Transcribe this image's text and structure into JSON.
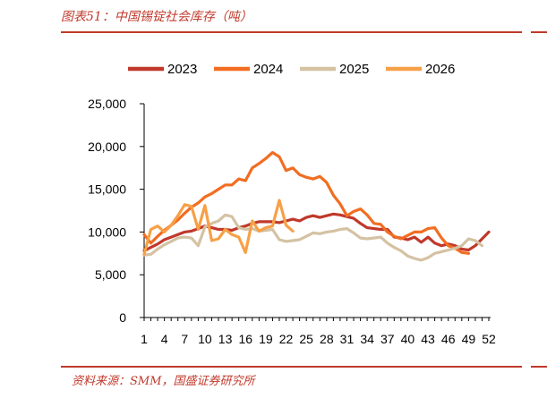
{
  "header": {
    "figure_title": "图表51：中国锡锭社会库存（吨）"
  },
  "footer": {
    "source": "资料来源：SMM，国盛证券研究所"
  },
  "colors": {
    "accent": "#c0392b",
    "axis": "#000000"
  },
  "chart_data": {
    "type": "line",
    "title": "",
    "xlabel": "",
    "ylabel": "",
    "xlim": [
      1,
      52
    ],
    "ylim": [
      0,
      25000
    ],
    "grid": false,
    "legend": "top",
    "x_ticks": [
      "1",
      "4",
      "7",
      "10",
      "13",
      "16",
      "19",
      "22",
      "25",
      "28",
      "31",
      "34",
      "37",
      "40",
      "43",
      "46",
      "49",
      "52"
    ],
    "y_ticks": [
      "0",
      "5,000",
      "10,000",
      "15,000",
      "20,000",
      "25,000"
    ],
    "series": [
      {
        "name": "2023",
        "color": "#c0392b",
        "width": 3.2,
        "x": [
          1,
          2,
          3,
          4,
          5,
          6,
          7,
          8,
          9,
          10,
          11,
          12,
          13,
          14,
          15,
          16,
          17,
          18,
          19,
          20,
          21,
          22,
          23,
          24,
          25,
          26,
          27,
          28,
          29,
          30,
          31,
          32,
          33,
          34,
          35,
          36,
          37,
          38,
          39,
          40,
          41,
          42,
          43,
          44,
          45,
          46,
          47,
          48,
          49,
          50,
          51,
          52
        ],
        "values": [
          7800,
          8200,
          8600,
          9100,
          9400,
          9700,
          10000,
          10100,
          10400,
          10700,
          10500,
          10300,
          10300,
          10200,
          10500,
          10700,
          11000,
          11200,
          11200,
          11200,
          11100,
          11300,
          11500,
          11300,
          11700,
          11900,
          11700,
          11900,
          12100,
          12000,
          11800,
          11600,
          11000,
          10500,
          10400,
          10300,
          10300,
          9400,
          9300,
          9100,
          9400,
          8800,
          9400,
          8700,
          8400,
          8600,
          8400,
          8000,
          7900,
          8400,
          9200,
          10000
        ]
      },
      {
        "name": "2024",
        "color": "#f26d21",
        "width": 3.2,
        "x": [
          1,
          2,
          3,
          4,
          5,
          6,
          7,
          8,
          9,
          10,
          11,
          12,
          13,
          14,
          15,
          16,
          17,
          18,
          19,
          20,
          21,
          22,
          23,
          24,
          25,
          26,
          27,
          28,
          29,
          30,
          31,
          32,
          33,
          34,
          35,
          36,
          37,
          38,
          39,
          40,
          41,
          42,
          43,
          44,
          45,
          46,
          47,
          48,
          49
        ],
        "values": [
          9700,
          8700,
          9500,
          10200,
          10800,
          11400,
          12200,
          12900,
          13400,
          14100,
          14500,
          15000,
          15500,
          15500,
          16200,
          16000,
          17500,
          18000,
          18600,
          19300,
          18800,
          17200,
          17500,
          16700,
          16400,
          16200,
          16500,
          15800,
          14300,
          13300,
          11900,
          12400,
          12700,
          12000,
          11000,
          10900,
          10000,
          9500,
          9200,
          9600,
          10000,
          10000,
          10400,
          10500,
          9300,
          8400,
          8100,
          7600,
          7500
        ]
      },
      {
        "name": "2025",
        "color": "#d4c2a3",
        "width": 3.2,
        "x": [
          1,
          2,
          3,
          4,
          5,
          6,
          7,
          8,
          9,
          10,
          11,
          12,
          13,
          14,
          15,
          16,
          17,
          18,
          19,
          20,
          21,
          22,
          23,
          24,
          25,
          26,
          27,
          28,
          29,
          30,
          31,
          32,
          33,
          34,
          35,
          36,
          37,
          38,
          39,
          40,
          41,
          42,
          43,
          44,
          45,
          46,
          47,
          48,
          49,
          50,
          51
        ],
        "values": [
          7300,
          7400,
          8000,
          8500,
          8900,
          9300,
          9400,
          9300,
          8400,
          10600,
          11000,
          11300,
          12000,
          11800,
          10500,
          10300,
          10400,
          10100,
          10200,
          10300,
          9100,
          8900,
          9000,
          9100,
          9500,
          9900,
          9800,
          10000,
          10100,
          10300,
          10400,
          9900,
          9300,
          9200,
          9300,
          9400,
          8700,
          8200,
          7800,
          7200,
          6900,
          6700,
          7000,
          7500,
          7700,
          7900,
          8100,
          8400,
          9200,
          9000,
          8400
        ]
      },
      {
        "name": "2026",
        "color": "#f7a047",
        "width": 3.2,
        "x": [
          1,
          2,
          3,
          4,
          5,
          6,
          7,
          8,
          9,
          10,
          11,
          12,
          13,
          14,
          15,
          16,
          17,
          18,
          19,
          20,
          21,
          22,
          23
        ],
        "values": [
          7400,
          10300,
          10700,
          10000,
          10800,
          11900,
          13200,
          13000,
          10300,
          13100,
          9000,
          9200,
          10300,
          9700,
          9400,
          7600,
          11300,
          10100,
          10500,
          10700,
          13700,
          10800,
          10100
        ]
      }
    ]
  }
}
